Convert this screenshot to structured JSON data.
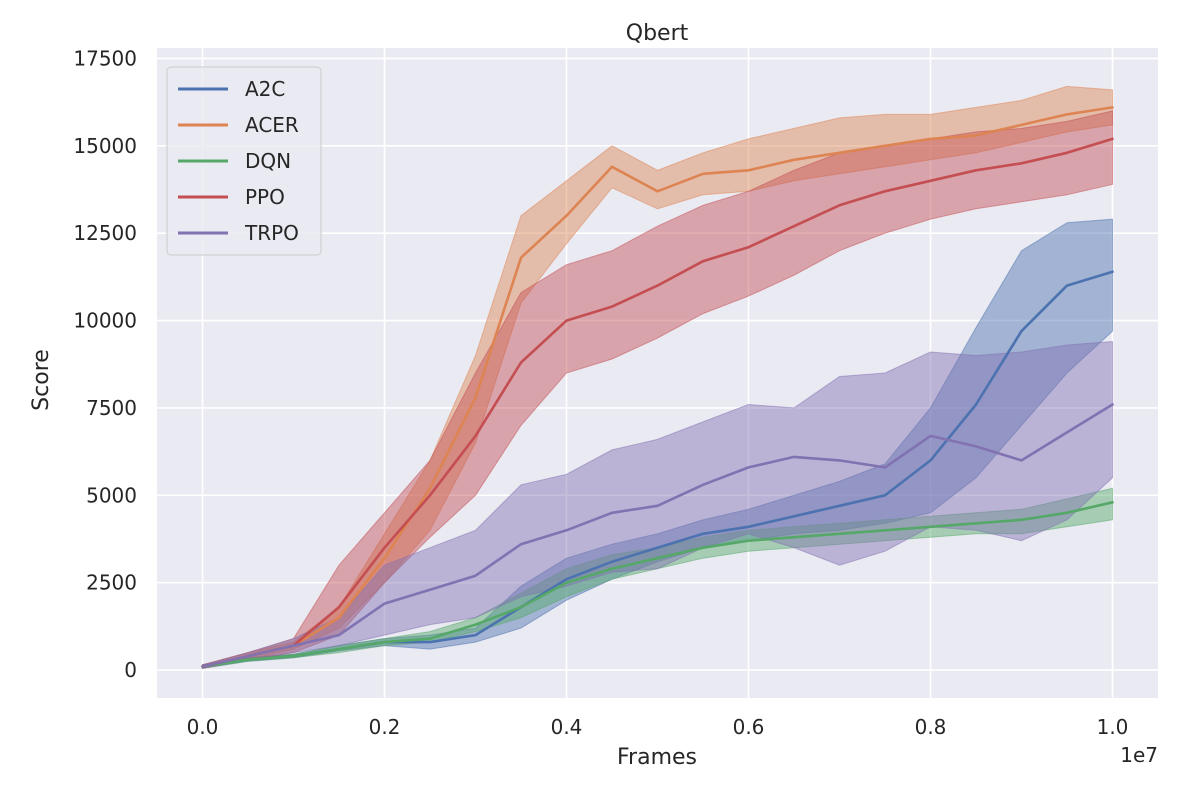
{
  "chart_data": {
    "type": "line",
    "title": "Qbert",
    "xlabel": "Frames",
    "ylabel": "Score",
    "x_offset_label": "1e7",
    "xlim": [
      -0.05,
      1.05
    ],
    "ylim": [
      -800,
      17800
    ],
    "xticks": [
      0.0,
      0.2,
      0.4,
      0.6,
      0.8,
      1.0
    ],
    "xtick_labels": [
      "0.0",
      "0.2",
      "0.4",
      "0.6",
      "0.8",
      "1.0"
    ],
    "yticks": [
      0,
      2500,
      5000,
      7500,
      10000,
      12500,
      15000,
      17500
    ],
    "ytick_labels": [
      "0",
      "2500",
      "5000",
      "7500",
      "10000",
      "12500",
      "15000",
      "17500"
    ],
    "grid": true,
    "legend_position": "top-left",
    "x": [
      0.0,
      0.05,
      0.1,
      0.15,
      0.2,
      0.25,
      0.3,
      0.35,
      0.4,
      0.45,
      0.5,
      0.55,
      0.6,
      0.65,
      0.7,
      0.75,
      0.8,
      0.85,
      0.9,
      0.95,
      1.0
    ],
    "series": [
      {
        "name": "A2C",
        "color": "#4c72b0",
        "values": [
          100,
          300,
          400,
          600,
          800,
          800,
          1000,
          1800,
          2600,
          3100,
          3500,
          3900,
          4100,
          4400,
          4700,
          5000,
          6000,
          7600,
          9700,
          11000,
          11400
        ],
        "lower": [
          50,
          250,
          350,
          550,
          700,
          600,
          800,
          1200,
          2000,
          2600,
          3100,
          3500,
          3700,
          3900,
          4000,
          4200,
          4500,
          5500,
          7000,
          8500,
          9700
        ],
        "upper": [
          150,
          350,
          450,
          700,
          900,
          1000,
          1200,
          2400,
          3200,
          3600,
          3900,
          4300,
          4600,
          5000,
          5400,
          5900,
          7500,
          9800,
          12000,
          12800,
          12900
        ]
      },
      {
        "name": "ACER",
        "color": "#dd8452",
        "values": [
          100,
          400,
          700,
          1500,
          3200,
          5200,
          7800,
          11800,
          13000,
          14400,
          13700,
          14200,
          14300,
          14600,
          14800,
          15000,
          15200,
          15300,
          15600,
          15900,
          16100
        ],
        "lower": [
          50,
          300,
          600,
          1200,
          2500,
          4000,
          6500,
          10500,
          12200,
          13800,
          13200,
          13600,
          13700,
          14000,
          14200,
          14400,
          14600,
          14800,
          15100,
          15400,
          15600
        ],
        "upper": [
          150,
          500,
          800,
          1800,
          3900,
          6000,
          9000,
          13000,
          14000,
          15000,
          14300,
          14800,
          15200,
          15500,
          15800,
          15900,
          15900,
          16100,
          16300,
          16700,
          16600
        ]
      },
      {
        "name": "DQN",
        "color": "#55a868",
        "values": [
          100,
          300,
          400,
          600,
          800,
          900,
          1300,
          1800,
          2500,
          2900,
          3200,
          3500,
          3700,
          3800,
          3900,
          4000,
          4100,
          4200,
          4300,
          4500,
          4800
        ],
        "lower": [
          50,
          250,
          350,
          500,
          700,
          800,
          1100,
          1500,
          2100,
          2600,
          2900,
          3200,
          3400,
          3500,
          3600,
          3700,
          3800,
          3900,
          3900,
          4100,
          4300
        ],
        "upper": [
          150,
          350,
          450,
          700,
          900,
          1100,
          1500,
          2200,
          2900,
          3300,
          3500,
          3800,
          4000,
          4100,
          4200,
          4300,
          4400,
          4500,
          4600,
          4900,
          5200
        ]
      },
      {
        "name": "PPO",
        "color": "#c44e52",
        "values": [
          100,
          400,
          700,
          1800,
          3500,
          5000,
          6700,
          8800,
          10000,
          10400,
          11000,
          11700,
          12100,
          12700,
          13300,
          13700,
          14000,
          14300,
          14500,
          14800,
          15200
        ],
        "lower": [
          50,
          300,
          500,
          1000,
          2500,
          3800,
          5000,
          7000,
          8500,
          8900,
          9500,
          10200,
          10700,
          11300,
          12000,
          12500,
          12900,
          13200,
          13400,
          13600,
          13900
        ],
        "upper": [
          150,
          500,
          900,
          3000,
          4500,
          6000,
          8500,
          10800,
          11600,
          12000,
          12700,
          13300,
          13700,
          14300,
          14800,
          15000,
          15200,
          15400,
          15500,
          15700,
          16000
        ]
      },
      {
        "name": "TRPO",
        "color": "#8172b2",
        "values": [
          100,
          400,
          700,
          1000,
          1900,
          2300,
          2700,
          3600,
          4000,
          4500,
          4700,
          5300,
          5800,
          6100,
          6000,
          5800,
          6700,
          6400,
          6000,
          6800,
          7600
        ],
        "lower": [
          50,
          300,
          500,
          700,
          1000,
          1300,
          1500,
          2100,
          2400,
          2800,
          2900,
          3500,
          3900,
          3500,
          3000,
          3400,
          4100,
          4000,
          3700,
          4300,
          5500
        ],
        "upper": [
          150,
          500,
          900,
          1500,
          3000,
          3500,
          4000,
          5300,
          5600,
          6300,
          6600,
          7100,
          7600,
          7500,
          8400,
          8500,
          9100,
          9000,
          9100,
          9300,
          9400
        ]
      }
    ]
  }
}
